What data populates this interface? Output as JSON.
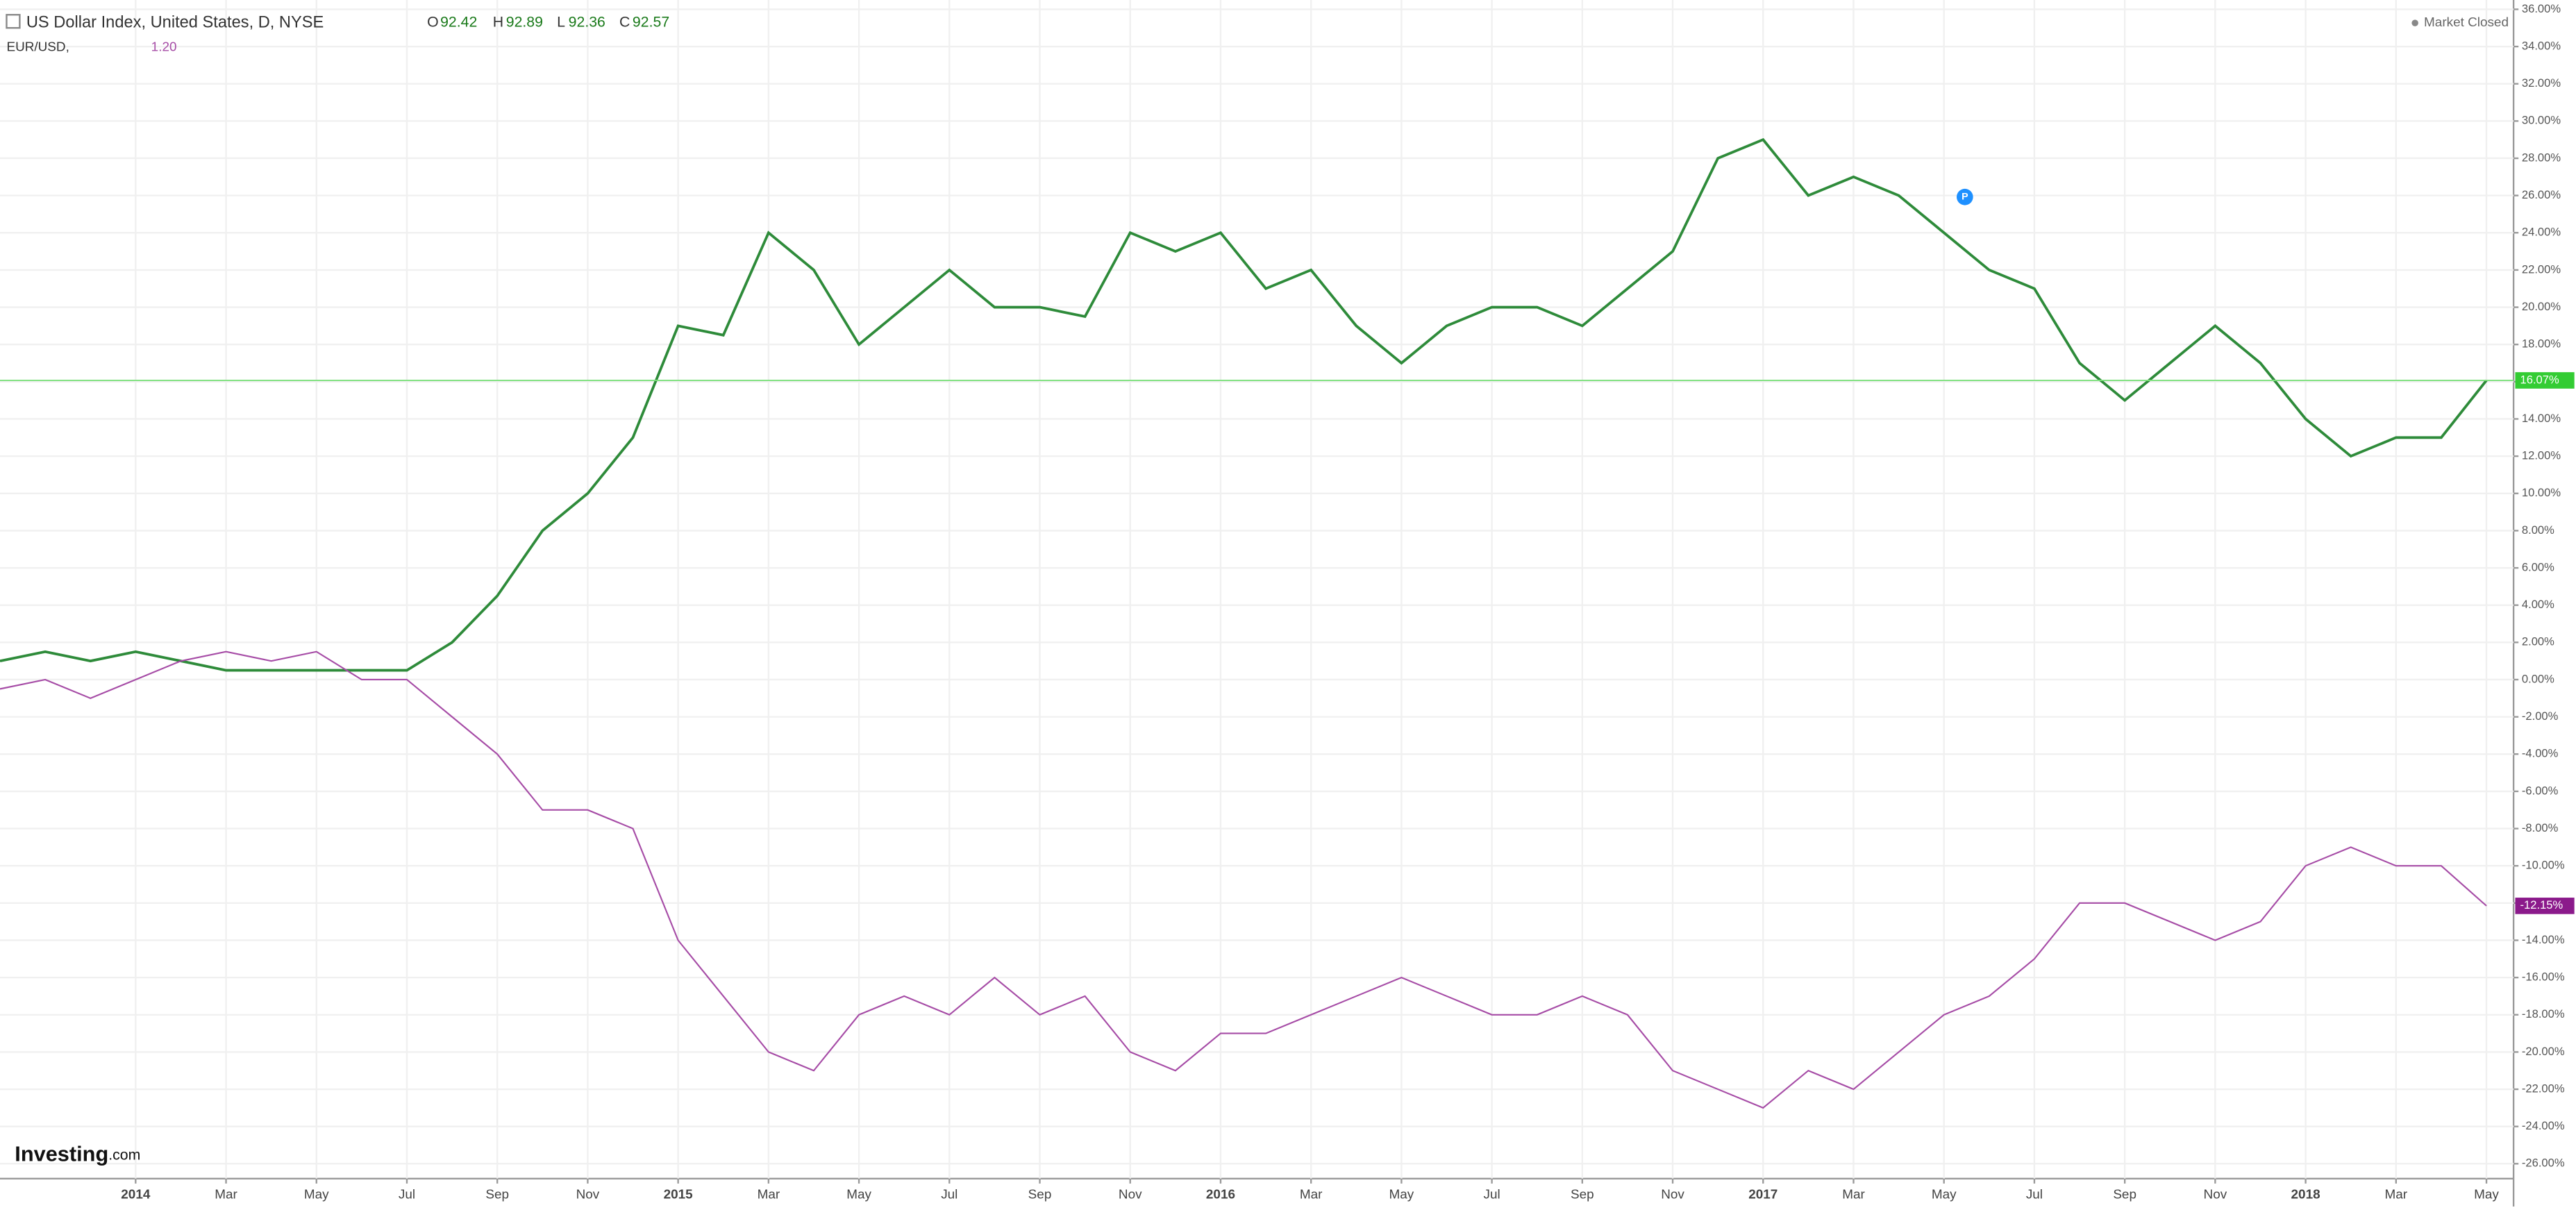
{
  "chart_data": {
    "type": "line",
    "x": [
      0,
      1,
      2,
      3,
      4,
      5,
      6,
      7,
      8,
      9,
      10,
      11,
      12,
      13,
      14,
      15,
      16,
      17,
      18,
      19,
      20,
      21,
      22,
      23,
      24,
      25,
      26,
      27,
      28,
      29,
      30,
      31,
      32,
      33,
      34,
      35,
      36,
      37,
      38,
      39,
      40,
      41,
      42,
      43,
      44,
      45,
      46,
      47,
      48,
      49,
      50,
      51,
      52,
      53,
      54,
      55
    ],
    "xlim": [
      0,
      55.6
    ],
    "xticks": [
      {
        "value": 3,
        "label": "2014"
      },
      {
        "value": 5,
        "label": "Mar"
      },
      {
        "value": 7,
        "label": "May"
      },
      {
        "value": 9,
        "label": "Jul"
      },
      {
        "value": 11,
        "label": "Sep"
      },
      {
        "value": 13,
        "label": "Nov"
      },
      {
        "value": 15,
        "label": "2015"
      },
      {
        "value": 17,
        "label": "Mar"
      },
      {
        "value": 19,
        "label": "May"
      },
      {
        "value": 21,
        "label": "Jul"
      },
      {
        "value": 23,
        "label": "Sep"
      },
      {
        "value": 25,
        "label": "Nov"
      },
      {
        "value": 27,
        "label": "2016"
      },
      {
        "value": 29,
        "label": "Mar"
      },
      {
        "value": 31,
        "label": "May"
      },
      {
        "value": 33,
        "label": "Jul"
      },
      {
        "value": 35,
        "label": "Sep"
      },
      {
        "value": 37,
        "label": "Nov"
      },
      {
        "value": 39,
        "label": "2017"
      },
      {
        "value": 41,
        "label": "Mar"
      },
      {
        "value": 43,
        "label": "May"
      },
      {
        "value": 45,
        "label": "Jul"
      },
      {
        "value": 47,
        "label": "Sep"
      },
      {
        "value": 49,
        "label": "Nov"
      },
      {
        "value": 51,
        "label": "2018"
      },
      {
        "value": 53,
        "label": "Mar"
      },
      {
        "value": 55,
        "label": "May"
      }
    ],
    "ylim": [
      -26.8,
      36.5
    ],
    "yticks": [
      {
        "value": 36,
        "label": "36.00%"
      },
      {
        "value": 34,
        "label": "34.00%"
      },
      {
        "value": 32,
        "label": "32.00%"
      },
      {
        "value": 30,
        "label": "30.00%"
      },
      {
        "value": 28,
        "label": "28.00%"
      },
      {
        "value": 26,
        "label": "26.00%"
      },
      {
        "value": 24,
        "label": "24.00%"
      },
      {
        "value": 22,
        "label": "22.00%"
      },
      {
        "value": 20,
        "label": "20.00%"
      },
      {
        "value": 18,
        "label": "18.00%"
      },
      {
        "value": 16,
        "label": "16.00%"
      },
      {
        "value": 14,
        "label": "14.00%"
      },
      {
        "value": 12,
        "label": "12.00%"
      },
      {
        "value": 10,
        "label": "10.00%"
      },
      {
        "value": 8,
        "label": "8.00%"
      },
      {
        "value": 6,
        "label": "6.00%"
      },
      {
        "value": 4,
        "label": "4.00%"
      },
      {
        "value": 2,
        "label": "2.00%"
      },
      {
        "value": 0,
        "label": "0.00%"
      },
      {
        "value": -2,
        "label": "-2.00%"
      },
      {
        "value": -4,
        "label": "-4.00%"
      },
      {
        "value": -6,
        "label": "-6.00%"
      },
      {
        "value": -8,
        "label": "-8.00%"
      },
      {
        "value": -10,
        "label": "-10.00%"
      },
      {
        "value": -12,
        "label": "-12.00%"
      },
      {
        "value": -14,
        "label": "-14.00%"
      },
      {
        "value": -16,
        "label": "-16.00%"
      },
      {
        "value": -18,
        "label": "-18.00%"
      },
      {
        "value": -20,
        "label": "-20.00%"
      },
      {
        "value": -22,
        "label": "-22.00%"
      },
      {
        "value": -24,
        "label": "-24.00%"
      },
      {
        "value": -26,
        "label": "-26.00%"
      }
    ],
    "grid": true,
    "series": [
      {
        "name": "US Dollar Index, United States, D, NYSE",
        "color": "#2e8b3a",
        "values": [
          1,
          1.5,
          1,
          1.5,
          1,
          0.5,
          0.5,
          0.5,
          0.5,
          0.5,
          2,
          4.5,
          8,
          10,
          13,
          19,
          18.5,
          24,
          22,
          18,
          20,
          22,
          20,
          20,
          19.5,
          24,
          23,
          24,
          21,
          22,
          19,
          17,
          19,
          20,
          20,
          19,
          21,
          23,
          28,
          29,
          26,
          27,
          26,
          24,
          22,
          21,
          17,
          15,
          17,
          19,
          17,
          14,
          12,
          13,
          13,
          16.07
        ],
        "last_label": "16.07%",
        "label_color": "#33cc33",
        "level_color": "#7be07b"
      },
      {
        "name": "EUR/USD,",
        "color": "#a64ca6",
        "values": [
          -0.5,
          0,
          -1,
          0,
          1,
          1.5,
          1,
          1.5,
          0,
          0,
          -2,
          -4,
          -7,
          -7,
          -8,
          -14,
          -17,
          -20,
          -21,
          -18,
          -17,
          -18,
          -16,
          -18,
          -17,
          -20,
          -21,
          -19,
          -19,
          -18,
          -17,
          -16,
          -17,
          -18,
          -18,
          -17,
          -18,
          -21,
          -22,
          -23,
          -21,
          -22,
          -20,
          -18,
          -17,
          -15,
          -12,
          -12,
          -13,
          -14,
          -13,
          -10,
          -9,
          -10,
          -10,
          -12.15
        ],
        "last_label": "-12.15%",
        "label_color": "#8b1a8b"
      }
    ],
    "ohlc": {
      "open_label": "O",
      "open": 92.42,
      "high_label": "H",
      "high": 92.89,
      "low_label": "L",
      "low": 92.36,
      "close_label": "C",
      "close": 92.57
    },
    "eur_value": 1.2,
    "eur_value_label": "1.20",
    "status": "Market Closed",
    "logo": "Investing",
    "logo_suffix": ".com",
    "marker": "P"
  }
}
